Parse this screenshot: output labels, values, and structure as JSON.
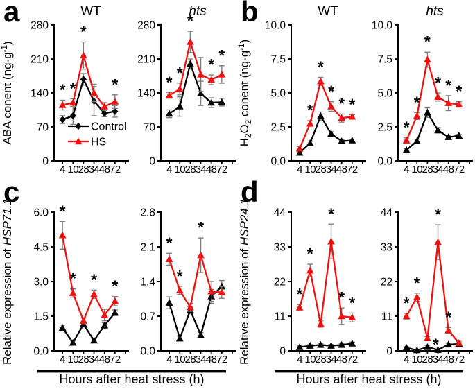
{
  "figure": {
    "x_axis_label": "Hours after heat stress (h)",
    "x_tick_labels": [
      "4",
      "10",
      "28",
      "34",
      "48",
      "72"
    ],
    "legend": [
      {
        "label": "Control",
        "marker": "diamond",
        "color": "#000000"
      },
      {
        "label": "HS",
        "marker": "triangle",
        "color": "#ed1111"
      }
    ],
    "colors": {
      "control": "#000000",
      "hs": "#ed1111",
      "error_bar": "#7f7f7f",
      "axis": "#000000",
      "background": "#ffffff"
    }
  },
  "chart_data": [
    {
      "panel": "a",
      "type": "line",
      "ylabel_parts": [
        {
          "t": "ABA conent (ng·g"
        },
        {
          "t": "-1",
          "sup": true
        },
        {
          "t": ")"
        }
      ],
      "show_xlabel": false,
      "subplots": [
        {
          "genotype": "WT",
          "title": {
            "text": "WT",
            "italic": false
          },
          "ylim": [
            0,
            280
          ],
          "yticks": [
            "0",
            "70",
            "140",
            "210",
            "280"
          ],
          "x": [
            4,
            10,
            28,
            34,
            48,
            72
          ],
          "series": [
            {
              "name": "Control",
              "marker": "diamond",
              "color": "#000000",
              "values": [
                85,
                93,
                168,
                123,
                98,
                102
              ],
              "errors": [
                8,
                18,
                12,
                30,
                7,
                12
              ]
            },
            {
              "name": "HS",
              "marker": "triangle",
              "color": "#ed1111",
              "values": [
                115,
                120,
                217,
                140,
                112,
                122
              ],
              "errors": [
                10,
                8,
                28,
                18,
                8,
                14
              ]
            }
          ],
          "asterisks": [
            {
              "i": 0
            },
            {
              "i": 1
            },
            {
              "i": 2
            },
            {
              "i": 5
            }
          ],
          "legend": true
        },
        {
          "genotype": "hts",
          "title": {
            "text": "hts",
            "italic": true
          },
          "ylim": [
            0,
            280
          ],
          "yticks": [
            "0",
            "70",
            "140",
            "210",
            "280"
          ],
          "x": [
            4,
            10,
            28,
            34,
            48,
            72
          ],
          "series": [
            {
              "name": "Control",
              "marker": "triangle",
              "color": "#000000",
              "values": [
                97,
                112,
                200,
                139,
                120,
                121
              ],
              "errors": [
                8,
                20,
                10,
                25,
                10,
                8
              ]
            },
            {
              "name": "HS",
              "marker": "triangle",
              "color": "#ed1111",
              "values": [
                135,
                148,
                245,
                178,
                167,
                178
              ],
              "errors": [
                6,
                12,
                22,
                35,
                10,
                18
              ]
            }
          ],
          "asterisks": [
            {
              "i": 0
            },
            {
              "i": 1
            },
            {
              "i": 2
            },
            {
              "i": 4
            },
            {
              "i": 5
            }
          ],
          "legend": false
        }
      ]
    },
    {
      "panel": "b",
      "type": "line",
      "ylabel_parts": [
        {
          "t": "H"
        },
        {
          "t": "2",
          "sub": true
        },
        {
          "t": "O"
        },
        {
          "t": "2",
          "sub": true
        },
        {
          "t": " conent (ng·g"
        },
        {
          "t": "-1",
          "sup": true
        },
        {
          "t": ")"
        }
      ],
      "show_xlabel": false,
      "subplots": [
        {
          "genotype": "WT",
          "title": {
            "text": "WT",
            "italic": false
          },
          "ylim": [
            0,
            10
          ],
          "yticks": [
            "0.0",
            "2.5",
            "5.0",
            "7.5",
            "10.0"
          ],
          "x": [
            4,
            10,
            28,
            34,
            48,
            72
          ],
          "series": [
            {
              "name": "Control",
              "marker": "triangle",
              "color": "#000000",
              "values": [
                0.6,
                1.3,
                3.3,
                2.0,
                1.45,
                1.5
              ],
              "errors": [
                0.1,
                0.15,
                0.3,
                0.15,
                0.1,
                0.1
              ]
            },
            {
              "name": "HS",
              "marker": "triangle",
              "color": "#ed1111",
              "values": [
                0.9,
                2.75,
                5.85,
                4.0,
                3.15,
                3.25
              ],
              "errors": [
                0.15,
                0.2,
                0.3,
                0.35,
                0.3,
                0.15
              ]
            }
          ],
          "asterisks": [
            {
              "i": 1
            },
            {
              "i": 2
            },
            {
              "i": 3
            },
            {
              "i": 4
            },
            {
              "i": 5
            }
          ],
          "legend": false
        },
        {
          "genotype": "hts",
          "title": {
            "text": "hts",
            "italic": true
          },
          "ylim": [
            0,
            10
          ],
          "yticks": [
            "0.0",
            "2.5",
            "5.0",
            "7.5",
            "10.0"
          ],
          "x": [
            4,
            10,
            28,
            34,
            48,
            72
          ],
          "series": [
            {
              "name": "Control",
              "marker": "triangle",
              "color": "#000000",
              "values": [
                0.8,
                1.45,
                3.55,
                2.25,
                1.75,
                1.85
              ],
              "errors": [
                0.1,
                0.15,
                0.35,
                0.2,
                0.12,
                0.1
              ]
            },
            {
              "name": "HS",
              "marker": "triangle",
              "color": "#ed1111",
              "values": [
                1.5,
                3.3,
                7.45,
                4.7,
                4.25,
                4.15
              ],
              "errors": [
                0.2,
                0.25,
                0.55,
                0.3,
                0.55,
                0.2
              ]
            }
          ],
          "asterisks": [
            {
              "i": 0
            },
            {
              "i": 1
            },
            {
              "i": 2
            },
            {
              "i": 3
            },
            {
              "i": 4
            },
            {
              "i": 5
            }
          ],
          "legend": false
        }
      ]
    },
    {
      "panel": "c",
      "type": "line",
      "ylabel_parts": [
        {
          "t": "Relative expression of "
        },
        {
          "t": "HSP71.1",
          "italic": true
        }
      ],
      "show_xlabel": true,
      "subplots": [
        {
          "genotype": "WT",
          "title": null,
          "ylim": [
            0,
            6
          ],
          "yticks": [
            "0.0",
            "1.5",
            "3.0",
            "4.5",
            "6.0"
          ],
          "x": [
            4,
            10,
            28,
            34,
            48,
            72
          ],
          "series": [
            {
              "name": "Control",
              "marker": "triangle",
              "color": "#000000",
              "values": [
                1.0,
                0.35,
                1.15,
                0.45,
                1.1,
                1.65
              ],
              "errors": [
                0.12,
                0.08,
                0.12,
                0.08,
                0.12,
                0.12
              ]
            },
            {
              "name": "HS",
              "marker": "triangle",
              "color": "#ed1111",
              "values": [
                5.0,
                2.5,
                1.3,
                2.45,
                1.55,
                2.15
              ],
              "errors": [
                0.6,
                0.18,
                0.12,
                0.18,
                0.25,
                0.2
              ]
            }
          ],
          "asterisks": [
            {
              "i": 0
            },
            {
              "i": 1
            },
            {
              "i": 3
            },
            {
              "i": 5
            }
          ],
          "legend": false
        },
        {
          "genotype": "hts",
          "title": null,
          "ylim": [
            0,
            2.8
          ],
          "yticks": [
            "0.0",
            "0.7",
            "1.4",
            "2.1",
            "2.8"
          ],
          "x": [
            4,
            10,
            28,
            34,
            48,
            72
          ],
          "series": [
            {
              "name": "Control",
              "marker": "triangle",
              "color": "#000000",
              "values": [
                0.97,
                0.25,
                0.82,
                0.32,
                1.1,
                1.3
              ],
              "errors": [
                0.12,
                0.05,
                0.07,
                0.05,
                0.14,
                0.12
              ]
            },
            {
              "name": "HS",
              "marker": "triangle",
              "color": "#ed1111",
              "values": [
                1.85,
                1.22,
                0.88,
                1.93,
                1.2,
                1.18
              ],
              "errors": [
                0.12,
                0.08,
                0.08,
                0.35,
                0.2,
                0.12
              ]
            }
          ],
          "asterisks": [
            {
              "i": 0
            },
            {
              "i": 1
            },
            {
              "i": 3
            }
          ],
          "legend": false
        }
      ]
    },
    {
      "panel": "d",
      "type": "line",
      "ylabel_parts": [
        {
          "t": "Relative expression of "
        },
        {
          "t": "HSP24.1",
          "italic": true
        }
      ],
      "show_xlabel": true,
      "subplots": [
        {
          "genotype": "WT",
          "title": null,
          "ylim": [
            0,
            44
          ],
          "yticks": [
            "0",
            "11",
            "22",
            "33",
            "44"
          ],
          "x": [
            4,
            10,
            28,
            34,
            48,
            72
          ],
          "series": [
            {
              "name": "Control",
              "marker": "triangle",
              "color": "#000000",
              "values": [
                1.2,
                1.6,
                1.9,
                1.6,
                1.9,
                2.3
              ],
              "errors": [
                0.4,
                0.4,
                0.4,
                0.4,
                0.4,
                0.5
              ]
            },
            {
              "name": "HS",
              "marker": "triangle",
              "color": "#ed1111",
              "values": [
                13.8,
                25.5,
                8.5,
                34.7,
                11.0,
                10.6
              ],
              "errors": [
                0.9,
                2.0,
                1.0,
                5.5,
                2.6,
                1.4
              ]
            }
          ],
          "asterisks": [
            {
              "i": 0
            },
            {
              "i": 1
            },
            {
              "i": 3
            },
            {
              "i": 4
            },
            {
              "i": 5
            }
          ],
          "legend": false
        },
        {
          "genotype": "hts",
          "title": null,
          "ylim": [
            0,
            44
          ],
          "yticks": [
            "0",
            "11",
            "22",
            "33",
            "44"
          ],
          "x": [
            4,
            10,
            28,
            34,
            48,
            72
          ],
          "series": [
            {
              "name": "Control",
              "marker": "triangle",
              "color": "#000000",
              "values": [
                1.0,
                0.2,
                1.2,
                0.3,
                2.0,
                2.2
              ],
              "errors": [
                0.3,
                0.2,
                0.4,
                0.2,
                0.4,
                0.4
              ]
            },
            {
              "name": "HS",
              "marker": "triangle",
              "color": "#ed1111",
              "values": [
                11.0,
                17.0,
                4.0,
                34.5,
                6.5,
                2.5
              ],
              "errors": [
                0.9,
                1.3,
                0.5,
                5.5,
                0.9,
                0.5
              ]
            }
          ],
          "asterisks": [
            {
              "i": 0
            },
            {
              "i": 1
            },
            {
              "i": 2,
              "dx": 12,
              "dy": 26
            },
            {
              "i": 3
            },
            {
              "i": 4
            }
          ],
          "legend": false
        }
      ]
    }
  ]
}
